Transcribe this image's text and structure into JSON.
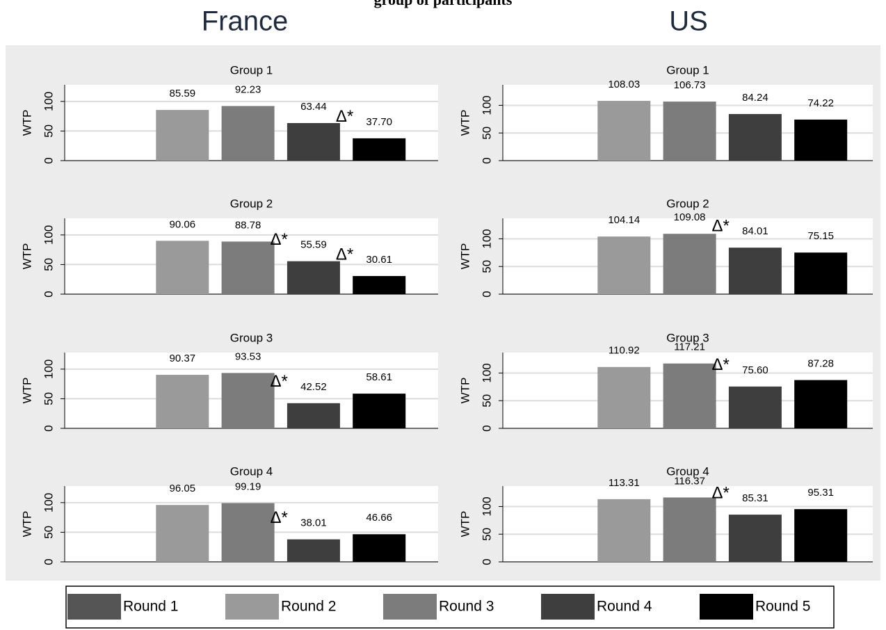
{
  "caption": "group of participants",
  "columns": [
    "France",
    "US"
  ],
  "legend": [
    {
      "name": "Round 1",
      "color": "#555555"
    },
    {
      "name": "Round 2",
      "color": "#9a9a9a"
    },
    {
      "name": "Round 3",
      "color": "#7c7c7c"
    },
    {
      "name": "Round 4",
      "color": "#3e3e3e"
    },
    {
      "name": "Round 5",
      "color": "#000000"
    }
  ],
  "chart_data": [
    {
      "type": "bar",
      "title": "Group 1",
      "ylabel": "WTP",
      "values": [
        null,
        85.59,
        92.23,
        63.44,
        37.7
      ],
      "value_labels": [
        null,
        "85.59",
        "92.23",
        "63.44",
        "37.70"
      ],
      "significance": [
        null,
        null,
        null,
        null,
        "Δ*"
      ],
      "ylim": [
        0,
        128
      ],
      "yticks": [
        0,
        50,
        100
      ],
      "grid": true
    },
    {
      "type": "bar",
      "title": "Group 1",
      "ylabel": "WTP",
      "values": [
        null,
        108.03,
        106.73,
        84.24,
        74.22
      ],
      "value_labels": [
        null,
        "108.03",
        "106.73",
        "84.24",
        "74.22"
      ],
      "significance": [
        null,
        null,
        null,
        null,
        null
      ],
      "ylim": [
        0,
        137
      ],
      "yticks": [
        0,
        50,
        100
      ],
      "grid": true
    },
    {
      "type": "bar",
      "title": "Group 2",
      "ylabel": "WTP",
      "values": [
        null,
        90.06,
        88.78,
        55.59,
        30.61
      ],
      "value_labels": [
        null,
        "90.06",
        "88.78",
        "55.59",
        "30.61"
      ],
      "significance": [
        null,
        null,
        null,
        "Δ*",
        "Δ*"
      ],
      "ylim": [
        0,
        128
      ],
      "yticks": [
        0,
        50,
        100
      ],
      "grid": true
    },
    {
      "type": "bar",
      "title": "Group 2",
      "ylabel": "WTP",
      "values": [
        null,
        104.14,
        109.08,
        84.01,
        75.15
      ],
      "value_labels": [
        null,
        "104.14",
        "109.08",
        "84.01",
        "75.15"
      ],
      "significance": [
        null,
        null,
        null,
        "Δ*",
        null
      ],
      "ylim": [
        0,
        137
      ],
      "yticks": [
        0,
        50,
        100
      ],
      "grid": true
    },
    {
      "type": "bar",
      "title": "Group 3",
      "ylabel": "WTP",
      "values": [
        null,
        90.37,
        93.53,
        42.52,
        58.61
      ],
      "value_labels": [
        null,
        "90.37",
        "93.53",
        "42.52",
        "58.61"
      ],
      "significance": [
        null,
        null,
        null,
        "Δ*",
        null
      ],
      "ylim": [
        0,
        128
      ],
      "yticks": [
        0,
        50,
        100
      ],
      "grid": true
    },
    {
      "type": "bar",
      "title": "Group 3",
      "ylabel": "WTP",
      "values": [
        null,
        110.92,
        117.21,
        75.6,
        87.28
      ],
      "value_labels": [
        null,
        "110.92",
        "117.21",
        "75.60",
        "87.28"
      ],
      "significance": [
        null,
        null,
        null,
        "Δ*",
        null
      ],
      "ylim": [
        0,
        137
      ],
      "yticks": [
        0,
        50,
        100
      ],
      "grid": true
    },
    {
      "type": "bar",
      "title": "Group 4",
      "ylabel": "WTP",
      "values": [
        null,
        96.05,
        99.19,
        38.01,
        46.66
      ],
      "value_labels": [
        null,
        "96.05",
        "99.19",
        "38.01",
        "46.66"
      ],
      "significance": [
        null,
        null,
        null,
        "Δ*",
        null
      ],
      "ylim": [
        0,
        128
      ],
      "yticks": [
        0,
        50,
        100
      ],
      "grid": true
    },
    {
      "type": "bar",
      "title": "Group 4",
      "ylabel": "WTP",
      "values": [
        null,
        113.31,
        116.37,
        85.31,
        95.31
      ],
      "value_labels": [
        null,
        "113.31",
        "116.37",
        "85.31",
        "95.31"
      ],
      "significance": [
        null,
        null,
        null,
        "Δ*",
        null
      ],
      "ylim": [
        0,
        137
      ],
      "yticks": [
        0,
        50,
        100
      ],
      "grid": true
    }
  ]
}
